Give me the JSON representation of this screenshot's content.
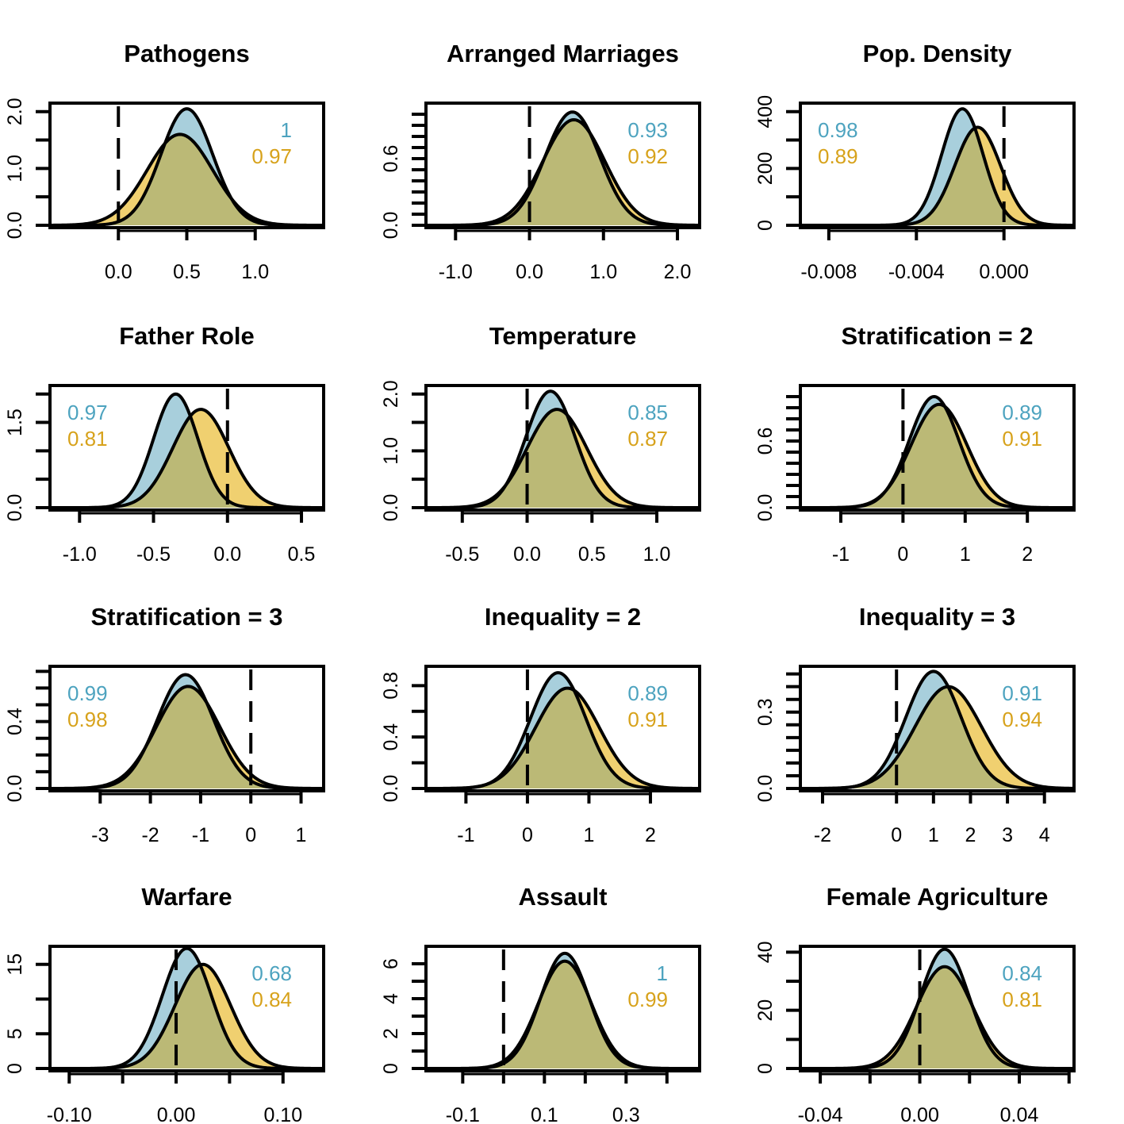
{
  "colors": {
    "blue": "#4da3bf",
    "gold": "#d7a21b",
    "blue_fill": "#a8cfdc",
    "gold_fill": "#f0d070",
    "overlap_fill": "#bbb976"
  },
  "chart_data": [
    {
      "type": "area",
      "title": "Pathogens",
      "xlim": [
        -0.5,
        1.5
      ],
      "ylim": [
        0,
        2.15
      ],
      "xticks": [
        0,
        0.5,
        1
      ],
      "xtick_labels": [
        "0.0",
        "0.5",
        "1.0"
      ],
      "yticks": [
        0,
        1,
        2
      ],
      "ytick_labels": [
        "0.0",
        "1.0",
        "2.0"
      ],
      "yminor": [
        0.5,
        1.5
      ],
      "blue": {
        "mean": 0.5,
        "peak": 2.05,
        "sd": 0.19
      },
      "gold": {
        "mean": 0.45,
        "peak": 1.6,
        "sd": 0.24
      },
      "prob_blue": "1",
      "prob_gold": "0.97",
      "label_pos": "right"
    },
    {
      "type": "area",
      "title": "Arranged Marriages",
      "xlim": [
        -1.4,
        2.3
      ],
      "ylim": [
        0,
        1.1
      ],
      "xticks": [
        -1,
        0,
        1,
        2
      ],
      "xtick_labels": [
        "-1.0",
        "0.0",
        "1.0",
        "2.0"
      ],
      "yticks": [
        0,
        0.6
      ],
      "ytick_labels": [
        "0.0",
        "0.6"
      ],
      "yminor": [
        0.1,
        0.2,
        0.3,
        0.4,
        0.5,
        0.7,
        0.8,
        0.9,
        1.0
      ],
      "blue": {
        "mean": 0.58,
        "peak": 1.02,
        "sd": 0.37
      },
      "gold": {
        "mean": 0.6,
        "peak": 0.95,
        "sd": 0.42
      },
      "prob_blue": "0.93",
      "prob_gold": "0.92",
      "label_pos": "right"
    },
    {
      "type": "area",
      "title": "Pop. Density",
      "xlim": [
        -0.0093,
        0.0032
      ],
      "ylim": [
        0,
        430
      ],
      "xticks": [
        -0.008,
        -0.004,
        0
      ],
      "xtick_labels": [
        "-0.008",
        "-0.004",
        "0.000"
      ],
      "yticks": [
        0,
        200,
        400
      ],
      "ytick_labels": [
        "0",
        "200",
        "400"
      ],
      "yminor": [
        100,
        300
      ],
      "blue": {
        "mean": -0.0019,
        "peak": 410,
        "sd": 0.00095
      },
      "gold": {
        "mean": -0.0012,
        "peak": 345,
        "sd": 0.00105
      },
      "prob_blue": "0.98",
      "prob_gold": "0.89",
      "label_pos": "left"
    },
    {
      "type": "area",
      "title": "Father Role",
      "xlim": [
        -1.2,
        0.65
      ],
      "ylim": [
        0,
        2.15
      ],
      "xticks": [
        -1,
        -0.5,
        0,
        0.5
      ],
      "xtick_labels": [
        "-1.0",
        "-0.5",
        "0.0",
        "0.5"
      ],
      "yticks": [
        0,
        1.5
      ],
      "ytick_labels": [
        "0.0",
        "1.5"
      ],
      "yminor": [
        0.5,
        1.0,
        2.0
      ],
      "blue": {
        "mean": -0.35,
        "peak": 2.0,
        "sd": 0.15
      },
      "gold": {
        "mean": -0.18,
        "peak": 1.73,
        "sd": 0.19
      },
      "prob_blue": "0.97",
      "prob_gold": "0.81",
      "label_pos": "left"
    },
    {
      "type": "area",
      "title": "Temperature",
      "xlim": [
        -0.78,
        1.33
      ],
      "ylim": [
        0,
        2.15
      ],
      "xticks": [
        -0.5,
        0,
        0.5,
        1
      ],
      "xtick_labels": [
        "-0.5",
        "0.0",
        "0.5",
        "1.0"
      ],
      "yticks": [
        0,
        1,
        2
      ],
      "ytick_labels": [
        "0.0",
        "1.0",
        "2.0"
      ],
      "yminor": [
        0.5,
        1.5
      ],
      "blue": {
        "mean": 0.18,
        "peak": 2.05,
        "sd": 0.19
      },
      "gold": {
        "mean": 0.23,
        "peak": 1.73,
        "sd": 0.23
      },
      "prob_blue": "0.85",
      "prob_gold": "0.87",
      "label_pos": "right"
    },
    {
      "type": "area",
      "title": "Stratification = 2",
      "xlim": [
        -1.65,
        2.75
      ],
      "ylim": [
        0,
        1.1
      ],
      "xticks": [
        -1,
        0,
        1,
        2
      ],
      "xtick_labels": [
        "-1",
        "0",
        "1",
        "2"
      ],
      "yticks": [
        0,
        0.6
      ],
      "ytick_labels": [
        "0.0",
        "0.6"
      ],
      "yminor": [
        0.1,
        0.2,
        0.3,
        0.4,
        0.5,
        0.7,
        0.8,
        0.9,
        1.0
      ],
      "blue": {
        "mean": 0.5,
        "peak": 1.0,
        "sd": 0.4
      },
      "gold": {
        "mean": 0.58,
        "peak": 0.93,
        "sd": 0.45
      },
      "prob_blue": "0.89",
      "prob_gold": "0.91",
      "label_pos": "right"
    },
    {
      "type": "area",
      "title": "Stratification = 3",
      "xlim": [
        -4.0,
        1.45
      ],
      "ylim": [
        0,
        0.73
      ],
      "xticks": [
        -3,
        -2,
        -1,
        0,
        1
      ],
      "xtick_labels": [
        "-3",
        "-2",
        "-1",
        "0",
        "1"
      ],
      "yticks": [
        0,
        0.4
      ],
      "ytick_labels": [
        "0.0",
        "0.4"
      ],
      "yminor": [
        0.1,
        0.2,
        0.3,
        0.5,
        0.6,
        0.7
      ],
      "blue": {
        "mean": -1.3,
        "peak": 0.68,
        "sd": 0.56
      },
      "gold": {
        "mean": -1.25,
        "peak": 0.61,
        "sd": 0.63
      },
      "prob_blue": "0.99",
      "prob_gold": "0.98",
      "label_pos": "left"
    },
    {
      "type": "area",
      "title": "Inequality = 2",
      "xlim": [
        -1.65,
        2.8
      ],
      "ylim": [
        0,
        0.95
      ],
      "xticks": [
        -1,
        0,
        1,
        2
      ],
      "xtick_labels": [
        "-1",
        "0",
        "1",
        "2"
      ],
      "yticks": [
        0,
        0.4,
        0.8
      ],
      "ytick_labels": [
        "0.0",
        "0.4",
        "0.8"
      ],
      "yminor": [
        0.2,
        0.6
      ],
      "blue": {
        "mean": 0.5,
        "peak": 0.9,
        "sd": 0.45
      },
      "gold": {
        "mean": 0.65,
        "peak": 0.78,
        "sd": 0.52
      },
      "prob_blue": "0.89",
      "prob_gold": "0.91",
      "label_pos": "right"
    },
    {
      "type": "area",
      "title": "Inequality = 3",
      "xlim": [
        -2.6,
        4.8
      ],
      "ylim": [
        0,
        0.48
      ],
      "xticks": [
        -2,
        0,
        1,
        2,
        3,
        4
      ],
      "xtick_labels": [
        "-2",
        "0",
        "1",
        "2",
        "3",
        "4"
      ],
      "yticks": [
        0,
        0.3
      ],
      "ytick_labels": [
        "0.0",
        "0.3"
      ],
      "yminor": [
        0.05,
        0.1,
        0.15,
        0.2,
        0.25,
        0.35,
        0.4,
        0.45
      ],
      "blue": {
        "mean": 1.0,
        "peak": 0.46,
        "sd": 0.75
      },
      "gold": {
        "mean": 1.4,
        "peak": 0.4,
        "sd": 0.9
      },
      "prob_blue": "0.91",
      "prob_gold": "0.94",
      "label_pos": "right"
    },
    {
      "type": "area",
      "title": "Warfare",
      "xlim": [
        -0.118,
        0.138
      ],
      "ylim": [
        0,
        17.6
      ],
      "xticks": [
        -0.1,
        -0.05,
        0,
        0.05,
        0.1
      ],
      "xtick_labels": [
        "-0.10",
        "",
        "0.00",
        "",
        "0.10"
      ],
      "yticks": [
        0,
        5,
        15
      ],
      "ytick_labels": [
        "0",
        "5",
        "15"
      ],
      "yminor": [
        10
      ],
      "blue": {
        "mean": 0.01,
        "peak": 17.3,
        "sd": 0.023
      },
      "gold": {
        "mean": 0.025,
        "peak": 15.0,
        "sd": 0.026
      },
      "prob_blue": "0.68",
      "prob_gold": "0.84",
      "label_pos": "right"
    },
    {
      "type": "area",
      "title": "Assault",
      "xlim": [
        -0.19,
        0.48
      ],
      "ylim": [
        0,
        7.0
      ],
      "xticks": [
        -0.1,
        0,
        0.1,
        0.2,
        0.3,
        0.4
      ],
      "xtick_labels": [
        "-0.1",
        "",
        "0.1",
        "",
        "0.3",
        ""
      ],
      "yticks": [
        0,
        2,
        4,
        6
      ],
      "ytick_labels": [
        "0",
        "2",
        "4",
        "6"
      ],
      "yminor": [
        1,
        3,
        5
      ],
      "blue": {
        "mean": 0.15,
        "peak": 6.6,
        "sd": 0.06
      },
      "gold": {
        "mean": 0.15,
        "peak": 6.15,
        "sd": 0.065
      },
      "prob_blue": "1",
      "prob_gold": "0.99",
      "label_pos": "right"
    },
    {
      "type": "area",
      "title": "Female Agriculture",
      "xlim": [
        -0.048,
        0.062
      ],
      "ylim": [
        0,
        42
      ],
      "xticks": [
        -0.04,
        -0.02,
        0,
        0.02,
        0.04,
        0.06
      ],
      "xtick_labels": [
        "-0.04",
        "",
        "0.00",
        "",
        "0.04",
        ""
      ],
      "yticks": [
        0,
        20,
        40
      ],
      "ytick_labels": [
        "0",
        "20",
        "40"
      ],
      "yminor": [
        10,
        30
      ],
      "blue": {
        "mean": 0.01,
        "peak": 41,
        "sd": 0.0098
      },
      "gold": {
        "mean": 0.01,
        "peak": 35,
        "sd": 0.0113
      },
      "prob_blue": "0.84",
      "prob_gold": "0.81",
      "label_pos": "right"
    }
  ]
}
